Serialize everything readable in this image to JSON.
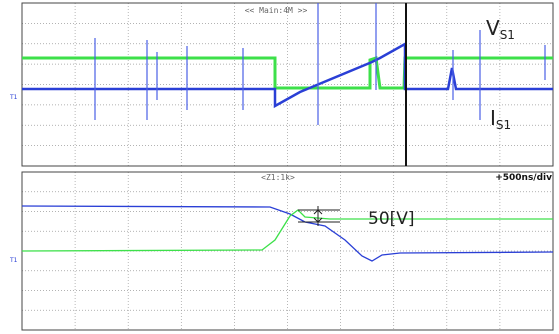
{
  "top_panel": {
    "header": "<< Main:4M >>",
    "voltage_label": {
      "main": "V",
      "sub": "S1"
    },
    "current_label": {
      "main": "I",
      "sub": "S1"
    },
    "marker": "T1"
  },
  "bottom_panel": {
    "header": "<Z1:1k>",
    "timebase": "+500ns/div",
    "annotation": "50[V]",
    "marker": "T1"
  }
}
